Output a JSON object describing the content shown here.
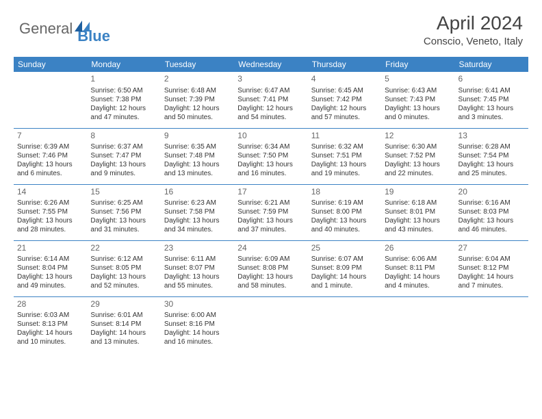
{
  "logo": {
    "text1": "General",
    "text2": "Blue"
  },
  "title": "April 2024",
  "location": "Conscio, Veneto, Italy",
  "colors": {
    "header_bg": "#3b82c4",
    "header_text": "#ffffff",
    "logo_gray": "#666666",
    "logo_blue": "#3b82c4",
    "border": "#3b82c4",
    "text": "#333333"
  },
  "weekdays": [
    "Sunday",
    "Monday",
    "Tuesday",
    "Wednesday",
    "Thursday",
    "Friday",
    "Saturday"
  ],
  "weeks": [
    [
      {
        "day": "",
        "lines": []
      },
      {
        "day": "1",
        "lines": [
          "Sunrise: 6:50 AM",
          "Sunset: 7:38 PM",
          "Daylight: 12 hours",
          "and 47 minutes."
        ]
      },
      {
        "day": "2",
        "lines": [
          "Sunrise: 6:48 AM",
          "Sunset: 7:39 PM",
          "Daylight: 12 hours",
          "and 50 minutes."
        ]
      },
      {
        "day": "3",
        "lines": [
          "Sunrise: 6:47 AM",
          "Sunset: 7:41 PM",
          "Daylight: 12 hours",
          "and 54 minutes."
        ]
      },
      {
        "day": "4",
        "lines": [
          "Sunrise: 6:45 AM",
          "Sunset: 7:42 PM",
          "Daylight: 12 hours",
          "and 57 minutes."
        ]
      },
      {
        "day": "5",
        "lines": [
          "Sunrise: 6:43 AM",
          "Sunset: 7:43 PM",
          "Daylight: 13 hours",
          "and 0 minutes."
        ]
      },
      {
        "day": "6",
        "lines": [
          "Sunrise: 6:41 AM",
          "Sunset: 7:45 PM",
          "Daylight: 13 hours",
          "and 3 minutes."
        ]
      }
    ],
    [
      {
        "day": "7",
        "lines": [
          "Sunrise: 6:39 AM",
          "Sunset: 7:46 PM",
          "Daylight: 13 hours",
          "and 6 minutes."
        ]
      },
      {
        "day": "8",
        "lines": [
          "Sunrise: 6:37 AM",
          "Sunset: 7:47 PM",
          "Daylight: 13 hours",
          "and 9 minutes."
        ]
      },
      {
        "day": "9",
        "lines": [
          "Sunrise: 6:35 AM",
          "Sunset: 7:48 PM",
          "Daylight: 13 hours",
          "and 13 minutes."
        ]
      },
      {
        "day": "10",
        "lines": [
          "Sunrise: 6:34 AM",
          "Sunset: 7:50 PM",
          "Daylight: 13 hours",
          "and 16 minutes."
        ]
      },
      {
        "day": "11",
        "lines": [
          "Sunrise: 6:32 AM",
          "Sunset: 7:51 PM",
          "Daylight: 13 hours",
          "and 19 minutes."
        ]
      },
      {
        "day": "12",
        "lines": [
          "Sunrise: 6:30 AM",
          "Sunset: 7:52 PM",
          "Daylight: 13 hours",
          "and 22 minutes."
        ]
      },
      {
        "day": "13",
        "lines": [
          "Sunrise: 6:28 AM",
          "Sunset: 7:54 PM",
          "Daylight: 13 hours",
          "and 25 minutes."
        ]
      }
    ],
    [
      {
        "day": "14",
        "lines": [
          "Sunrise: 6:26 AM",
          "Sunset: 7:55 PM",
          "Daylight: 13 hours",
          "and 28 minutes."
        ]
      },
      {
        "day": "15",
        "lines": [
          "Sunrise: 6:25 AM",
          "Sunset: 7:56 PM",
          "Daylight: 13 hours",
          "and 31 minutes."
        ]
      },
      {
        "day": "16",
        "lines": [
          "Sunrise: 6:23 AM",
          "Sunset: 7:58 PM",
          "Daylight: 13 hours",
          "and 34 minutes."
        ]
      },
      {
        "day": "17",
        "lines": [
          "Sunrise: 6:21 AM",
          "Sunset: 7:59 PM",
          "Daylight: 13 hours",
          "and 37 minutes."
        ]
      },
      {
        "day": "18",
        "lines": [
          "Sunrise: 6:19 AM",
          "Sunset: 8:00 PM",
          "Daylight: 13 hours",
          "and 40 minutes."
        ]
      },
      {
        "day": "19",
        "lines": [
          "Sunrise: 6:18 AM",
          "Sunset: 8:01 PM",
          "Daylight: 13 hours",
          "and 43 minutes."
        ]
      },
      {
        "day": "20",
        "lines": [
          "Sunrise: 6:16 AM",
          "Sunset: 8:03 PM",
          "Daylight: 13 hours",
          "and 46 minutes."
        ]
      }
    ],
    [
      {
        "day": "21",
        "lines": [
          "Sunrise: 6:14 AM",
          "Sunset: 8:04 PM",
          "Daylight: 13 hours",
          "and 49 minutes."
        ]
      },
      {
        "day": "22",
        "lines": [
          "Sunrise: 6:12 AM",
          "Sunset: 8:05 PM",
          "Daylight: 13 hours",
          "and 52 minutes."
        ]
      },
      {
        "day": "23",
        "lines": [
          "Sunrise: 6:11 AM",
          "Sunset: 8:07 PM",
          "Daylight: 13 hours",
          "and 55 minutes."
        ]
      },
      {
        "day": "24",
        "lines": [
          "Sunrise: 6:09 AM",
          "Sunset: 8:08 PM",
          "Daylight: 13 hours",
          "and 58 minutes."
        ]
      },
      {
        "day": "25",
        "lines": [
          "Sunrise: 6:07 AM",
          "Sunset: 8:09 PM",
          "Daylight: 14 hours",
          "and 1 minute."
        ]
      },
      {
        "day": "26",
        "lines": [
          "Sunrise: 6:06 AM",
          "Sunset: 8:11 PM",
          "Daylight: 14 hours",
          "and 4 minutes."
        ]
      },
      {
        "day": "27",
        "lines": [
          "Sunrise: 6:04 AM",
          "Sunset: 8:12 PM",
          "Daylight: 14 hours",
          "and 7 minutes."
        ]
      }
    ],
    [
      {
        "day": "28",
        "lines": [
          "Sunrise: 6:03 AM",
          "Sunset: 8:13 PM",
          "Daylight: 14 hours",
          "and 10 minutes."
        ]
      },
      {
        "day": "29",
        "lines": [
          "Sunrise: 6:01 AM",
          "Sunset: 8:14 PM",
          "Daylight: 14 hours",
          "and 13 minutes."
        ]
      },
      {
        "day": "30",
        "lines": [
          "Sunrise: 6:00 AM",
          "Sunset: 8:16 PM",
          "Daylight: 14 hours",
          "and 16 minutes."
        ]
      },
      {
        "day": "",
        "lines": []
      },
      {
        "day": "",
        "lines": []
      },
      {
        "day": "",
        "lines": []
      },
      {
        "day": "",
        "lines": []
      }
    ]
  ]
}
